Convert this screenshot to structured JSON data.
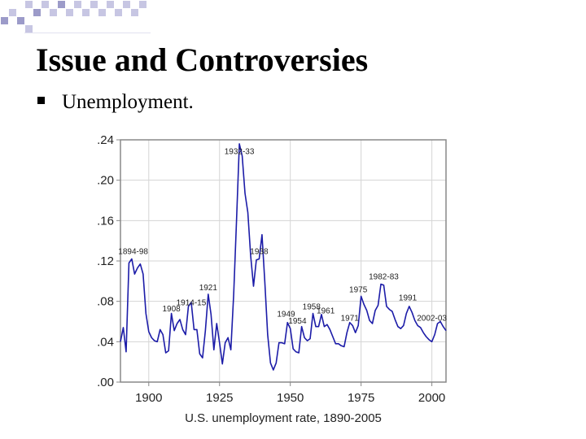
{
  "slide": {
    "title": "Issue and Controversies",
    "bullet": "Unemployment."
  },
  "colors": {
    "line": "#1c1ca8",
    "frame": "#888888",
    "grid": "#d5d5d5",
    "accent_light": "#c7c6e3",
    "accent_dark": "#9c9bc9"
  },
  "chart_data": {
    "type": "line",
    "title": "",
    "xlabel": "U.S. unemployment rate, 1890-2005",
    "ylabel": "",
    "xlim": [
      1890,
      2005
    ],
    "ylim": [
      0,
      0.24
    ],
    "grid": true,
    "x_ticks": [
      1900,
      1925,
      1950,
      1975,
      2000
    ],
    "x_tick_labels": [
      "1900",
      "1925",
      "1950",
      "1975",
      "2000"
    ],
    "y_ticks": [
      0,
      0.04,
      0.08,
      0.12,
      0.16,
      0.2,
      0.24
    ],
    "y_tick_labels": [
      ".00",
      ".04",
      ".08",
      ".12",
      ".16",
      ".20",
      ".24"
    ],
    "series": [
      {
        "name": "",
        "x": [
          1890,
          1891,
          1892,
          1893,
          1894,
          1895,
          1896,
          1897,
          1898,
          1899,
          1900,
          1901,
          1902,
          1903,
          1904,
          1905,
          1906,
          1907,
          1908,
          1909,
          1910,
          1911,
          1912,
          1913,
          1914,
          1915,
          1916,
          1917,
          1918,
          1919,
          1920,
          1921,
          1922,
          1923,
          1924,
          1925,
          1926,
          1927,
          1928,
          1929,
          1930,
          1931,
          1932,
          1933,
          1934,
          1935,
          1936,
          1937,
          1938,
          1939,
          1940,
          1941,
          1942,
          1943,
          1944,
          1945,
          1946,
          1947,
          1948,
          1949,
          1950,
          1951,
          1952,
          1953,
          1954,
          1955,
          1956,
          1957,
          1958,
          1959,
          1960,
          1961,
          1962,
          1963,
          1964,
          1965,
          1966,
          1967,
          1968,
          1969,
          1970,
          1971,
          1972,
          1973,
          1974,
          1975,
          1976,
          1977,
          1978,
          1979,
          1980,
          1981,
          1982,
          1983,
          1984,
          1985,
          1986,
          1987,
          1988,
          1989,
          1990,
          1991,
          1992,
          1993,
          1994,
          1995,
          1996,
          1997,
          1998,
          1999,
          2000,
          2001,
          2002,
          2003,
          2004,
          2005
        ],
        "y": [
          0.04,
          0.054,
          0.03,
          0.118,
          0.122,
          0.107,
          0.113,
          0.117,
          0.107,
          0.068,
          0.05,
          0.044,
          0.041,
          0.04,
          0.052,
          0.047,
          0.029,
          0.031,
          0.068,
          0.051,
          0.058,
          0.062,
          0.052,
          0.047,
          0.075,
          0.079,
          0.052,
          0.052,
          0.028,
          0.024,
          0.051,
          0.087,
          0.067,
          0.032,
          0.058,
          0.039,
          0.018,
          0.039,
          0.044,
          0.032,
          0.087,
          0.16,
          0.236,
          0.224,
          0.187,
          0.168,
          0.125,
          0.095,
          0.121,
          0.122,
          0.146,
          0.099,
          0.047,
          0.019,
          0.012,
          0.019,
          0.039,
          0.039,
          0.038,
          0.059,
          0.053,
          0.033,
          0.03,
          0.029,
          0.055,
          0.044,
          0.041,
          0.043,
          0.068,
          0.055,
          0.055,
          0.067,
          0.055,
          0.057,
          0.052,
          0.045,
          0.038,
          0.038,
          0.036,
          0.035,
          0.049,
          0.059,
          0.056,
          0.049,
          0.056,
          0.085,
          0.077,
          0.071,
          0.061,
          0.058,
          0.071,
          0.076,
          0.097,
          0.096,
          0.075,
          0.072,
          0.07,
          0.062,
          0.055,
          0.053,
          0.056,
          0.068,
          0.075,
          0.069,
          0.061,
          0.056,
          0.054,
          0.049,
          0.045,
          0.042,
          0.04,
          0.047,
          0.058,
          0.06,
          0.055,
          0.051
        ]
      }
    ],
    "annotations": [
      {
        "text": "1894-98",
        "x": 1894.5,
        "y": 0.127
      },
      {
        "text": "1908",
        "x": 1908,
        "y": 0.07
      },
      {
        "text": "1914-15",
        "x": 1915,
        "y": 0.076
      },
      {
        "text": "1921",
        "x": 1921,
        "y": 0.091
      },
      {
        "text": "1932-33",
        "x": 1932,
        "y": 0.226
      },
      {
        "text": "1938",
        "x": 1939,
        "y": 0.127
      },
      {
        "text": "1949",
        "x": 1948.5,
        "y": 0.065
      },
      {
        "text": "1954",
        "x": 1952.5,
        "y": 0.058
      },
      {
        "text": "1958",
        "x": 1957.5,
        "y": 0.072
      },
      {
        "text": "1961",
        "x": 1962.5,
        "y": 0.068
      },
      {
        "text": "1971",
        "x": 1971,
        "y": 0.061
      },
      {
        "text": "1975",
        "x": 1974,
        "y": 0.089
      },
      {
        "text": "1982-83",
        "x": 1983,
        "y": 0.102
      },
      {
        "text": "1991",
        "x": 1991.5,
        "y": 0.081
      },
      {
        "text": "2002-03",
        "x": 2000,
        "y": 0.061
      }
    ]
  }
}
